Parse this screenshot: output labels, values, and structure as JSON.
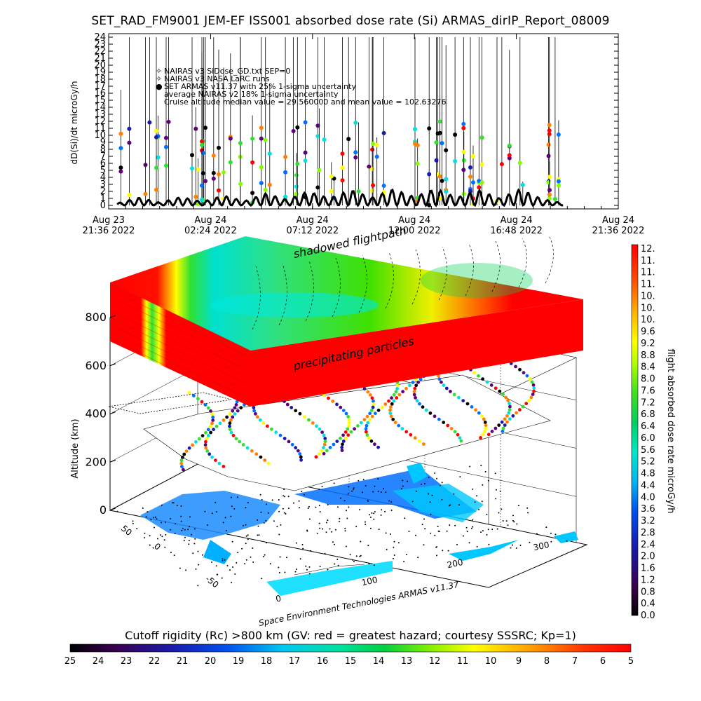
{
  "title": "SET_RAD_FM9001  JEM-EF ISS001 absorbed dose rate (Si) ARMAS_dirIP_Report_08009",
  "chart_data": [
    {
      "type": "line",
      "ylabel": "dD(Si)/dt microGy/h",
      "ylim": [
        0,
        24
      ],
      "yticks": [
        "0",
        "1",
        "2",
        "3",
        "4",
        "5",
        "6",
        "7",
        "8",
        "9",
        "10",
        "11",
        "12",
        "13",
        "14",
        "15",
        "16",
        "17",
        "18",
        "19",
        "20",
        "21",
        "22",
        "23",
        "24"
      ],
      "xticks": [
        {
          "date": "Aug 23",
          "time": "21:36 2022"
        },
        {
          "date": "Aug 24",
          "time": "02:24 2022"
        },
        {
          "date": "Aug 24",
          "time": "07:12 2022"
        },
        {
          "date": "Aug 24",
          "time": "12:00 2022"
        },
        {
          "date": "Aug 24",
          "time": "16:48 2022"
        },
        {
          "date": "Aug 24",
          "time": "21:36 2022"
        }
      ],
      "legend": [
        "NAIRAS v3 SiDose_GD.txt SEP=0",
        "NAIRAS v3 NASA LaRC runs",
        "SET ARMAS v11.37 with 25% 1-sigma uncertainty",
        "average NAIRAS v2 18% 1-sigma uncertainty",
        "Cruise altitude median value = 29.560000 and mean value = 102.63276"
      ],
      "series": [
        {
          "name": "NAIRAS v3 SiDose_GD.txt SEP=0",
          "x": [
            "22:00",
            "23:00",
            "00:00",
            "01:00",
            "02:00",
            "03:00",
            "04:00",
            "05:00",
            "06:00",
            "07:00",
            "08:00",
            "09:00",
            "10:00",
            "11:00",
            "12:00",
            "13:00",
            "14:00",
            "15:00",
            "16:00",
            "17:00",
            "18:00",
            "19:00"
          ],
          "y": [
            0.3,
            1.1,
            0.4,
            1.2,
            0.5,
            1.4,
            0.6,
            1.7,
            0.8,
            2.0,
            1.0,
            2.2,
            1.1,
            2.3,
            1.2,
            2.4,
            1.1,
            2.2,
            1.0,
            2.3,
            0.9,
            0.3
          ]
        }
      ]
    },
    {
      "type": "heatmap",
      "zlabel": "Altitude (km)",
      "zticks": [
        "0",
        "200",
        "400",
        "600",
        "800"
      ],
      "lat_ticks": [
        "-50",
        "0",
        "50"
      ],
      "lon_ticks": [
        "0",
        "100",
        "200",
        "300"
      ],
      "annotations": [
        "shadowed flightpath",
        "precipitating particles"
      ],
      "credit": "Space Environment Technologies ARMAS v11.37",
      "colorbar": {
        "label": "flight absorbed dose rate microGy/h",
        "ticks": [
          "12.",
          "11.",
          "11.",
          "11.",
          "10.",
          "10.",
          "10.",
          "9.6",
          "9.2",
          "8.8",
          "8.4",
          "8.0",
          "7.6",
          "7.2",
          "6.8",
          "6.4",
          "6.0",
          "5.6",
          "5.2",
          "4.8",
          "4.4",
          "4.0",
          "3.6",
          "3.2",
          "2.8",
          "2.4",
          "2.0",
          "1.6",
          "1.2",
          "0.8",
          "0.4",
          "0.0"
        ]
      }
    },
    {
      "type": "heatmap",
      "title": "Cutoff rigidity (Rc) >800 km (GV: red = greatest hazard; courtesy SSSRC; Kp=1)",
      "ticks": [
        "25",
        "24",
        "23",
        "22",
        "21",
        "20",
        "19",
        "18",
        "17",
        "16",
        "15",
        "14",
        "13",
        "12",
        "11",
        "10",
        "9",
        "8",
        "7",
        "6",
        "5"
      ]
    }
  ]
}
